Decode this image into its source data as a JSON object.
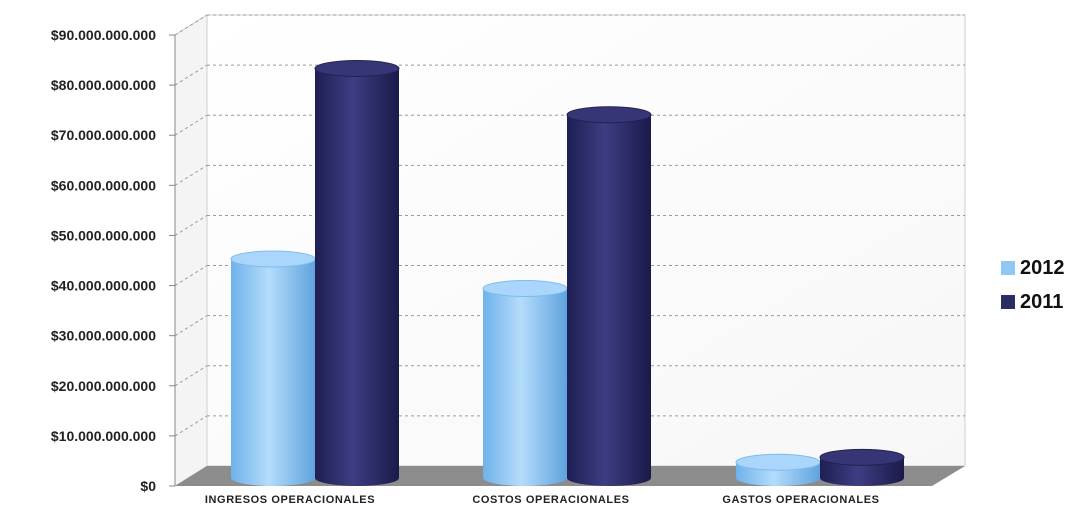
{
  "chart_data": {
    "type": "bar",
    "categories": [
      "INGRESOS OPERACIONALES",
      "COSTOS OPERACIONALES",
      "GASTOS OPERACIONALES"
    ],
    "series": [
      {
        "name": "2012",
        "values": [
          44500000000,
          38500000000,
          3200000000
        ],
        "color": "#8fc8f5"
      },
      {
        "name": "2011",
        "values": [
          83200000000,
          73800000000,
          4200000000
        ],
        "color": "#2b2b66"
      }
    ],
    "ylim": [
      0,
      90000000000
    ],
    "yticks": [
      "$0",
      "$10.000.000.000",
      "$20.000.000.000",
      "$30.000.000.000",
      "$40.000.000.000",
      "$50.000.000.000",
      "$60.000.000.000",
      "$70.000.000.000",
      "$80.000.000.000",
      "$90.000.000.000"
    ],
    "ytick_values": [
      0,
      10000000000,
      20000000000,
      30000000000,
      40000000000,
      50000000000,
      60000000000,
      70000000000,
      80000000000,
      90000000000
    ],
    "grid": true,
    "legend_position": "right",
    "style": "3d-cylinder"
  }
}
